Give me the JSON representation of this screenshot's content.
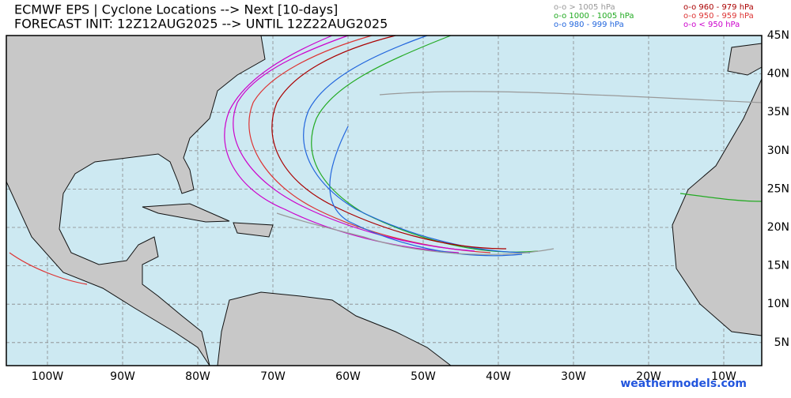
{
  "title": "ECMWF EPS | Cyclone Locations --> Next [10-days]",
  "subtitle": "FORECAST INIT: 12Z12AUG2025 --> UNTIL 12Z22AUG2025",
  "legend": [
    {
      "label": "o-o > 1005 hPa",
      "color": "#999999"
    },
    {
      "label": "o-o 1000 - 1005 hPa",
      "color": "#22aa22"
    },
    {
      "label": "o-o 980 - 999 hPa",
      "color": "#2266dd"
    },
    {
      "label": "o-o 960 - 979 hPa",
      "color": "#aa0000"
    },
    {
      "label": "o-o 950 - 959 hPa",
      "color": "#dd3333"
    },
    {
      "label": "o-o < 950 hPa",
      "color": "#cc00cc"
    }
  ],
  "lat_labels": [
    "45N",
    "40N",
    "35N",
    "30N",
    "25N",
    "20N",
    "15N",
    "10N",
    "5N"
  ],
  "lon_labels": [
    "100W",
    "90W",
    "80W",
    "70W",
    "60W",
    "50W",
    "40W",
    "30W",
    "20W",
    "10W"
  ],
  "footer": "weathermodels.com"
}
